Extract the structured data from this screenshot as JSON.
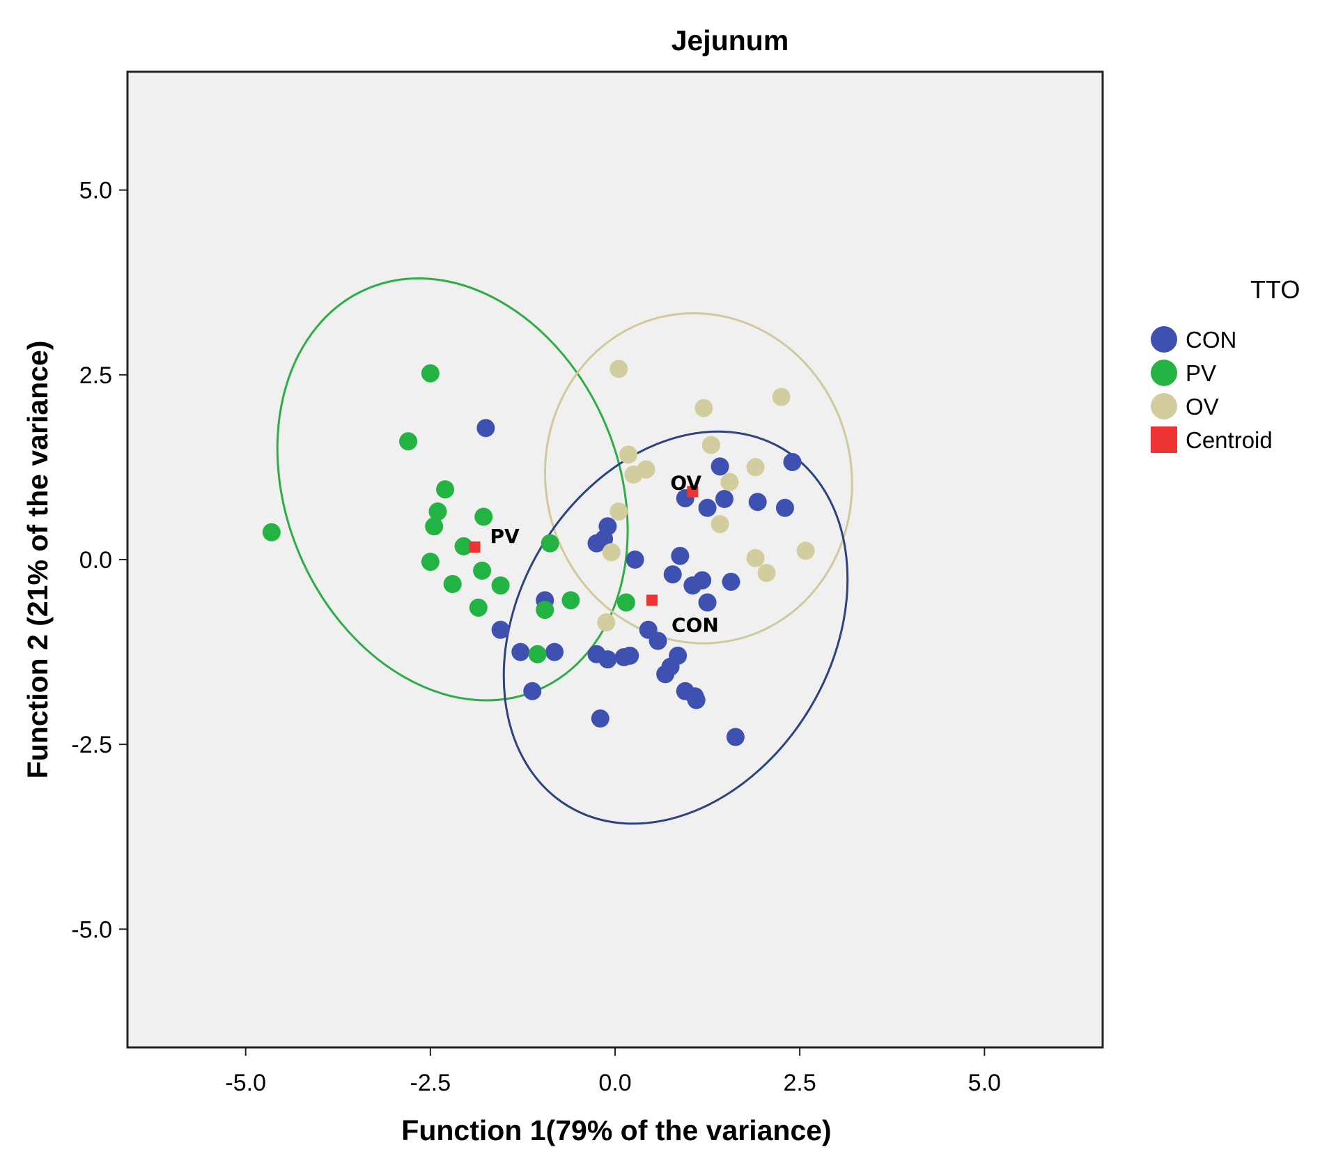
{
  "chart_data": {
    "type": "scatter",
    "title": "Jejunum",
    "xlabel": "Function 1(79% of the variance)",
    "ylabel": "Function 2 (21% of the variance)",
    "xlim": [
      -6.6,
      6.6
    ],
    "ylim": [
      -6.6,
      6.6
    ],
    "xticks": [
      {
        "value": -5.0,
        "label": "-5.0"
      },
      {
        "value": -2.5,
        "label": "-2.5"
      },
      {
        "value": 0.0,
        "label": "0.0"
      },
      {
        "value": 2.5,
        "label": "2.5"
      },
      {
        "value": 5.0,
        "label": "5.0"
      }
    ],
    "yticks": [
      {
        "value": 5.0,
        "label": "5.0"
      },
      {
        "value": 2.5,
        "label": "2.5"
      },
      {
        "value": 0.0,
        "label": "0.0"
      },
      {
        "value": -2.5,
        "label": "-2.5"
      },
      {
        "value": -5.0,
        "label": "-5.0"
      }
    ],
    "grid": false,
    "background_color": "#f0f0f0",
    "legend": {
      "title": "TTO",
      "position": "right",
      "entries": [
        {
          "label": "CON",
          "color": "#3f51b0",
          "marker": "circle"
        },
        {
          "label": "PV",
          "color": "#22b343",
          "marker": "circle"
        },
        {
          "label": "OV",
          "color": "#d2cd9e",
          "marker": "circle"
        },
        {
          "label": "Centroid",
          "color": "#ee3333",
          "marker": "square"
        }
      ]
    },
    "series": [
      {
        "name": "CON",
        "color": "#3f51b0",
        "points": [
          [
            -1.75,
            1.78
          ],
          [
            1.42,
            1.26
          ],
          [
            2.4,
            1.32
          ],
          [
            0.95,
            0.83
          ],
          [
            1.48,
            0.82
          ],
          [
            1.93,
            0.78
          ],
          [
            2.3,
            0.7
          ],
          [
            1.25,
            0.7
          ],
          [
            -0.1,
            0.45
          ],
          [
            -0.15,
            0.28
          ],
          [
            -0.25,
            0.22
          ],
          [
            0.27,
            0.0
          ],
          [
            0.88,
            0.05
          ],
          [
            0.78,
            -0.2
          ],
          [
            1.05,
            -0.35
          ],
          [
            1.18,
            -0.28
          ],
          [
            1.57,
            -0.3
          ],
          [
            1.25,
            -0.58
          ],
          [
            -0.95,
            -0.55
          ],
          [
            -1.55,
            -0.95
          ],
          [
            -1.28,
            -1.25
          ],
          [
            -0.82,
            -1.25
          ],
          [
            -0.25,
            -1.28
          ],
          [
            -0.1,
            -1.35
          ],
          [
            0.12,
            -1.32
          ],
          [
            0.2,
            -1.3
          ],
          [
            0.45,
            -0.95
          ],
          [
            0.58,
            -1.1
          ],
          [
            0.85,
            -1.3
          ],
          [
            0.75,
            -1.45
          ],
          [
            0.68,
            -1.55
          ],
          [
            0.95,
            -1.78
          ],
          [
            1.08,
            -1.85
          ],
          [
            1.1,
            -1.9
          ],
          [
            -1.12,
            -1.78
          ],
          [
            -0.2,
            -2.15
          ],
          [
            1.63,
            -2.4
          ]
        ]
      },
      {
        "name": "PV",
        "color": "#22b343",
        "points": [
          [
            -2.5,
            2.52
          ],
          [
            -2.8,
            1.6
          ],
          [
            -2.3,
            0.95
          ],
          [
            -2.4,
            0.65
          ],
          [
            -2.45,
            0.45
          ],
          [
            -1.78,
            0.58
          ],
          [
            -4.65,
            0.37
          ],
          [
            -2.05,
            0.18
          ],
          [
            -0.88,
            0.22
          ],
          [
            -2.5,
            -0.03
          ],
          [
            -1.8,
            -0.15
          ],
          [
            -2.2,
            -0.33
          ],
          [
            -1.55,
            -0.35
          ],
          [
            -0.6,
            -0.55
          ],
          [
            0.15,
            -0.58
          ],
          [
            -1.85,
            -0.65
          ],
          [
            -0.95,
            -0.68
          ],
          [
            -1.05,
            -1.28
          ]
        ]
      },
      {
        "name": "OV",
        "color": "#d2cd9e",
        "points": [
          [
            0.05,
            2.58
          ],
          [
            2.25,
            2.2
          ],
          [
            1.2,
            2.05
          ],
          [
            1.3,
            1.55
          ],
          [
            0.18,
            1.42
          ],
          [
            0.42,
            1.22
          ],
          [
            0.25,
            1.15
          ],
          [
            1.9,
            1.25
          ],
          [
            1.55,
            1.05
          ],
          [
            0.05,
            0.65
          ],
          [
            1.42,
            0.48
          ],
          [
            -0.05,
            0.1
          ],
          [
            1.9,
            0.02
          ],
          [
            2.58,
            0.12
          ],
          [
            2.05,
            -0.18
          ],
          [
            -0.12,
            -0.85
          ]
        ]
      }
    ],
    "centroids": [
      {
        "label": "PV",
        "x": -1.9,
        "y": 0.17
      },
      {
        "label": "OV",
        "x": 1.05,
        "y": 0.92
      },
      {
        "label": "CON",
        "x": 0.5,
        "y": -0.55
      }
    ],
    "ellipses": [
      {
        "group": "PV",
        "color": "#2eac45",
        "center": [
          -2.2,
          0.95
        ],
        "radius_x": 2.25,
        "radius_y": 2.95,
        "rotation_deg": -23
      },
      {
        "group": "OV",
        "color": "#cfc99c",
        "center": [
          1.13,
          1.1
        ],
        "radius_x": 2.07,
        "radius_y": 2.24,
        "rotation_deg": -12
      },
      {
        "group": "CON",
        "color": "#2c4380",
        "center": [
          0.82,
          -0.92
        ],
        "radius_x": 2.12,
        "radius_y": 2.82,
        "rotation_deg": 31
      }
    ]
  }
}
